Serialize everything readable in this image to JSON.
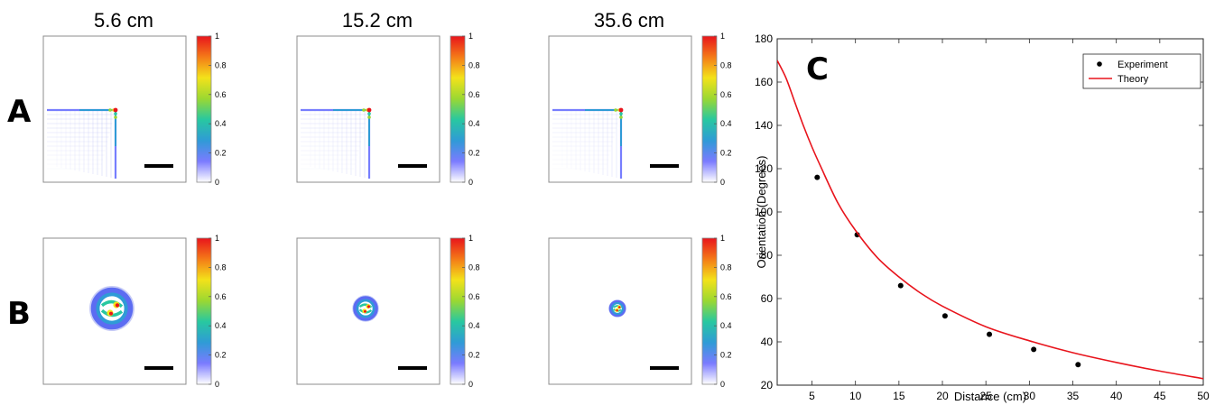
{
  "columns": [
    "5.6 cm",
    "15.2 cm",
    "35.6 cm"
  ],
  "rows": [
    {
      "letter": "A",
      "pattern": "corner-lattice"
    },
    {
      "letter": "B",
      "pattern": "ring-vortex",
      "spot_scale": [
        1.0,
        0.58,
        0.38
      ]
    }
  ],
  "colorbar": {
    "ticks": [
      "1",
      "0.8",
      "0.6",
      "0.4",
      "0.2",
      "0"
    ],
    "colors": [
      "#ffffff",
      "#7b7bff",
      "#2f9bd6",
      "#28c8a0",
      "#9bd832",
      "#f3e21a",
      "#f47a18",
      "#e8141c"
    ]
  },
  "panel_c_letter": "C",
  "chart_data": {
    "type": "scatter",
    "xlabel": "Distance (cm)",
    "ylabel": "Orientation (Degrees)",
    "xlim": [
      1,
      50
    ],
    "ylim": [
      20,
      180
    ],
    "xticks": [
      5,
      10,
      15,
      20,
      25,
      30,
      35,
      40,
      45,
      50
    ],
    "yticks": [
      20,
      40,
      60,
      80,
      100,
      120,
      140,
      160,
      180
    ],
    "grid": false,
    "legend_position": "top-right",
    "series": [
      {
        "name": "Experiment",
        "style": "markers",
        "color": "#000000",
        "x": [
          5.6,
          10.2,
          15.2,
          20.3,
          25.4,
          30.5,
          35.6
        ],
        "y": [
          116,
          89.5,
          66,
          52,
          43.5,
          36.5,
          29.5
        ]
      },
      {
        "name": "Theory",
        "style": "line",
        "color": "#e8141c",
        "x": [
          1,
          2,
          3,
          4,
          5,
          6,
          8,
          10,
          12.5,
          15,
          17.5,
          20,
          25,
          30,
          35,
          40,
          45,
          50
        ],
        "y": [
          170,
          162,
          151,
          140,
          130,
          121,
          104,
          91.5,
          79,
          70,
          62.5,
          56.5,
          47,
          40.5,
          35,
          30.5,
          26.5,
          23
        ]
      }
    ]
  }
}
